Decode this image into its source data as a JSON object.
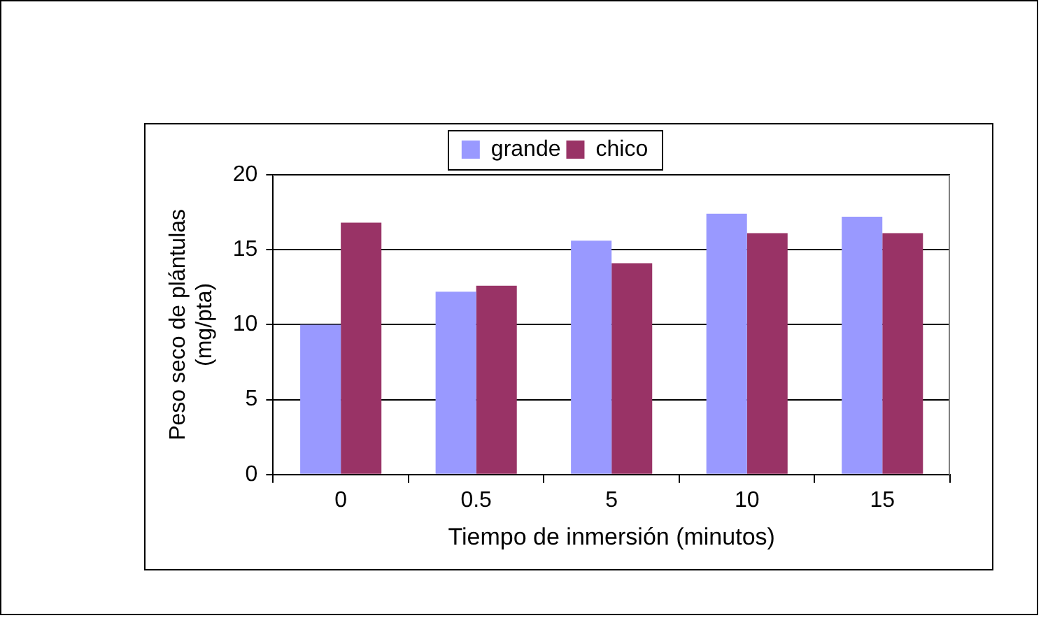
{
  "chart_data": {
    "type": "bar",
    "xlabel": "Tiempo de inmersión (minutos)",
    "ylabel": "Peso seco de plántulas\n(mg/pta)",
    "categories": [
      "0",
      "0.5",
      "5",
      "10",
      "15"
    ],
    "series": [
      {
        "name": "grande",
        "color": "#9999ff",
        "values": [
          10,
          12.2,
          15.6,
          17.4,
          17.2
        ]
      },
      {
        "name": "chico",
        "color": "#993366",
        "values": [
          16.8,
          12.6,
          14.1,
          16.1,
          16.1
        ]
      }
    ],
    "ylim": [
      0,
      20
    ],
    "yticks": [
      0,
      5,
      10,
      15,
      20
    ],
    "grid": "y",
    "legend": "top"
  }
}
